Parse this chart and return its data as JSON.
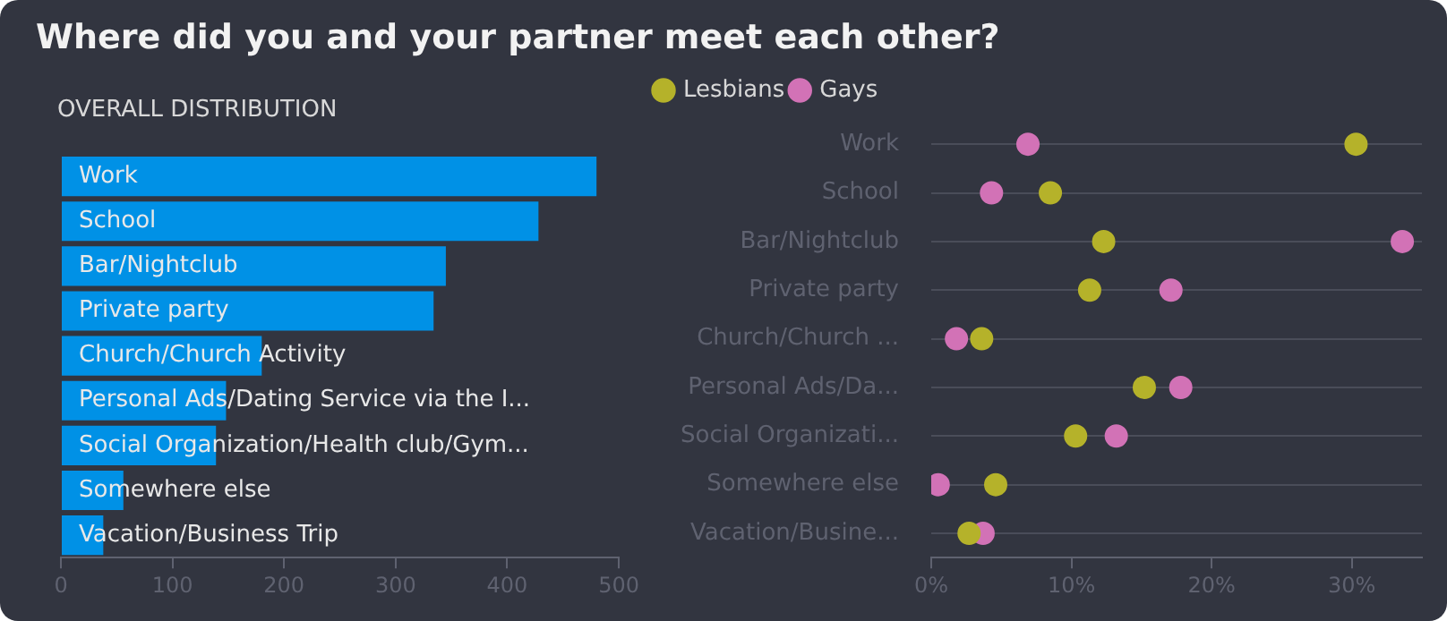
{
  "chart_data": [
    {
      "type": "bar",
      "title": "Where did you and your partner meet each other?",
      "subtitle": "OVERALL DISTRIBUTION",
      "orientation": "horizontal",
      "tick_labels": "x",
      "grid": false,
      "categories": [
        "Work",
        "School",
        "Bar/Nightclub",
        "Private party",
        "Church/Church Activity",
        "Personal Ads/Dating Service via the I...",
        "Social Organization/Health club/Gym...",
        "Somewhere else",
        "Vacation/Business Trip"
      ],
      "values": [
        480,
        428,
        345,
        334,
        180,
        148,
        139,
        56,
        38
      ],
      "color": "#0091e6",
      "xlim": [
        0,
        500
      ],
      "xticks": [
        0,
        100,
        200,
        300,
        400,
        500
      ]
    },
    {
      "type": "scatter",
      "orientation": "horizontal",
      "grid": "y",
      "legend": "top left",
      "marker": "circle",
      "categories": [
        "Work",
        "School",
        "Bar/Nightclub",
        "Private party",
        "Church/Church ...",
        "Personal Ads/Da...",
        "Social Organizati...",
        "Somewhere else",
        "Vacation/Busine..."
      ],
      "series": [
        {
          "name": "Lesbians",
          "color": "#b5b22a",
          "values": [
            30.3,
            8.5,
            12.3,
            11.3,
            3.6,
            15.2,
            10.3,
            4.6,
            2.7
          ]
        },
        {
          "name": "Gays",
          "color": "#d272b6",
          "values": [
            6.9,
            4.3,
            33.6,
            17.1,
            1.8,
            17.8,
            13.2,
            0.5,
            3.7
          ]
        }
      ],
      "xlim": [
        0,
        35
      ],
      "xticks": [
        {
          "value": 0,
          "label": "0%"
        },
        {
          "value": 10,
          "label": "10%"
        },
        {
          "value": 20,
          "label": "20%"
        },
        {
          "value": 30,
          "label": "30%"
        }
      ]
    }
  ]
}
